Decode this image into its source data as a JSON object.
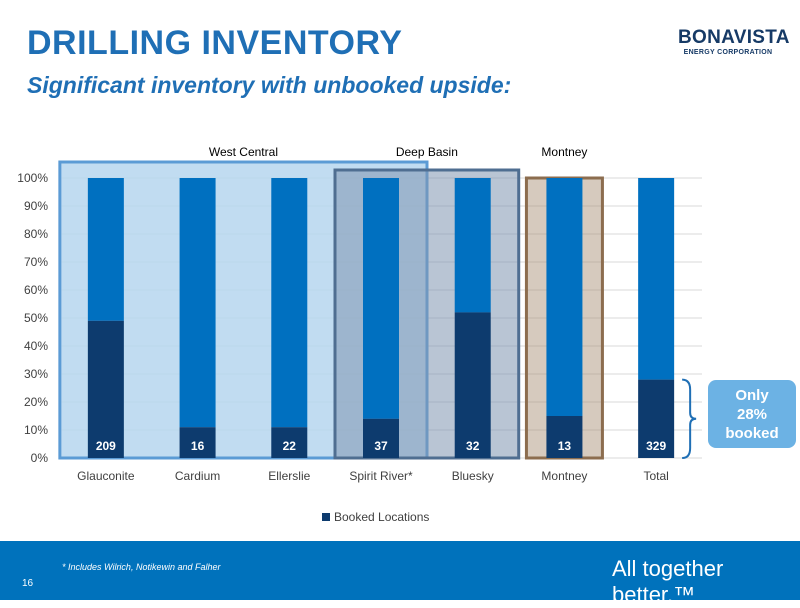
{
  "slide": {
    "title": "DRILLING INVENTORY",
    "subtitle": "Significant inventory with unbooked upside:",
    "logo_main": "BONAVISTA",
    "logo_sub": "ENERGY CORPORATION",
    "callout_line1": "Only",
    "callout_line2": "28%",
    "callout_line3": "booked",
    "footnote": "* Includes Wilrich, Notikewin and Falher",
    "page_number": "16",
    "tagline": "All together better.™"
  },
  "colors": {
    "booked": "#0d3b6e",
    "unbooked": "#0070c0",
    "west_central_region": "#b6d6ee",
    "deep_basin_region": "#7f96b0",
    "montney_region": "#a48a6f",
    "footer": "#0072bc",
    "title": "#1f6fb5"
  },
  "chart_data": {
    "type": "bar",
    "stacked": true,
    "categories": [
      "Glauconite",
      "Cardium",
      "Ellerslie",
      "Spirit River*",
      "Bluesky",
      "Montney",
      "Total"
    ],
    "series": [
      {
        "name": "Booked Locations",
        "values": [
          49,
          11,
          11,
          14,
          52,
          15,
          28
        ]
      },
      {
        "name": "",
        "values": [
          51,
          89,
          89,
          86,
          48,
          85,
          72
        ]
      }
    ],
    "data_labels": [
      "209",
      "16",
      "22",
      "37",
      "32",
      "13",
      "329"
    ],
    "ylim": [
      0,
      100
    ],
    "yticks": [
      "0%",
      "10%",
      "20%",
      "30%",
      "40%",
      "50%",
      "60%",
      "70%",
      "80%",
      "90%",
      "100%"
    ],
    "xlabel": "",
    "ylabel": "",
    "grid": true,
    "legend": "bottom",
    "legend_label": "Booked Locations",
    "regions": [
      {
        "label": "West Central",
        "categories": [
          "Glauconite",
          "Cardium",
          "Ellerslie",
          "Spirit River*"
        ]
      },
      {
        "label": "Deep Basin",
        "categories": [
          "Spirit River*",
          "Bluesky"
        ]
      },
      {
        "label": "Montney",
        "categories": [
          "Montney"
        ]
      }
    ]
  }
}
